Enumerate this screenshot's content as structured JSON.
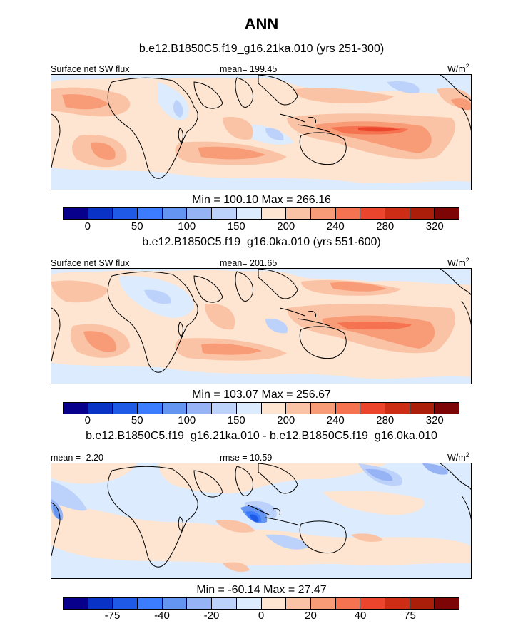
{
  "figure": {
    "title": "ANN"
  },
  "chart_data": [
    {
      "type": "heatmap",
      "title": "b.e12.B1850C5.f19_g16.21ka.010 (yrs 251-300)",
      "variable_label": "Surface net SW flux",
      "stat_label": "mean= 199.45",
      "units_label": "W/m",
      "units_sup": "2",
      "minmax_label": "Min = 100.10 Max = 266.16",
      "min": 100.1,
      "max": 266.16,
      "mean": 199.45,
      "colorbar": {
        "levels": [
          0,
          25,
          50,
          75,
          100,
          125,
          150,
          175,
          200,
          220,
          240,
          260,
          280,
          300,
          320
        ],
        "tick_labels": [
          "0",
          "50",
          "100",
          "150",
          "200",
          "240",
          "280",
          "320"
        ],
        "colors": [
          "#08008c",
          "#0933c4",
          "#1e5ae6",
          "#3c7dff",
          "#6495f0",
          "#96b4f5",
          "#bcd2fa",
          "#dcebfd",
          "#fde5d2",
          "#fbc3a5",
          "#f89c78",
          "#f57350",
          "#eb462d",
          "#cd2d14",
          "#aa1e0a",
          "#7d0505"
        ]
      }
    },
    {
      "type": "heatmap",
      "title": "b.e12.B1850C5.f19_g16.0ka.010 (yrs 551-600)",
      "variable_label": "Surface net SW flux",
      "stat_label": "mean= 201.65",
      "units_label": "W/m",
      "units_sup": "2",
      "minmax_label": "Min = 103.07 Max = 256.67",
      "min": 103.07,
      "max": 256.67,
      "mean": 201.65,
      "colorbar": {
        "levels": [
          0,
          25,
          50,
          75,
          100,
          125,
          150,
          175,
          200,
          220,
          240,
          260,
          280,
          300,
          320
        ],
        "tick_labels": [
          "0",
          "50",
          "100",
          "150",
          "200",
          "240",
          "280",
          "320"
        ],
        "colors": [
          "#08008c",
          "#0933c4",
          "#1e5ae6",
          "#3c7dff",
          "#6495f0",
          "#96b4f5",
          "#bcd2fa",
          "#dcebfd",
          "#fde5d2",
          "#fbc3a5",
          "#f89c78",
          "#f57350",
          "#eb462d",
          "#cd2d14",
          "#aa1e0a",
          "#7d0505"
        ]
      }
    },
    {
      "type": "heatmap",
      "title": "b.e12.B1850C5.f19_g16.21ka.010 - b.e12.B1850C5.f19_g16.0ka.010",
      "left_label": "mean =  -2.20",
      "stat_label": "rmse =  10.59",
      "units_label": "W/m",
      "units_sup": "2",
      "minmax_label": "Min = -60.14 Max =  27.47",
      "min": -60.14,
      "max": 27.47,
      "mean": -2.2,
      "rmse": 10.59,
      "colorbar": {
        "levels": [
          -100,
          -75,
          -50,
          -40,
          -30,
          -20,
          -10,
          0,
          10,
          20,
          30,
          40,
          50,
          75,
          100
        ],
        "tick_labels": [
          "-75",
          "-40",
          "-20",
          "0",
          "20",
          "40",
          "75"
        ],
        "colors": [
          "#08008c",
          "#0933c4",
          "#1e5ae6",
          "#3c7dff",
          "#6495f0",
          "#96b4f5",
          "#bcd2fa",
          "#dcebfd",
          "#fde5d2",
          "#fbc3a5",
          "#f89c78",
          "#f57350",
          "#eb462d",
          "#cd2d14",
          "#aa1e0a",
          "#7d0505"
        ]
      }
    }
  ]
}
